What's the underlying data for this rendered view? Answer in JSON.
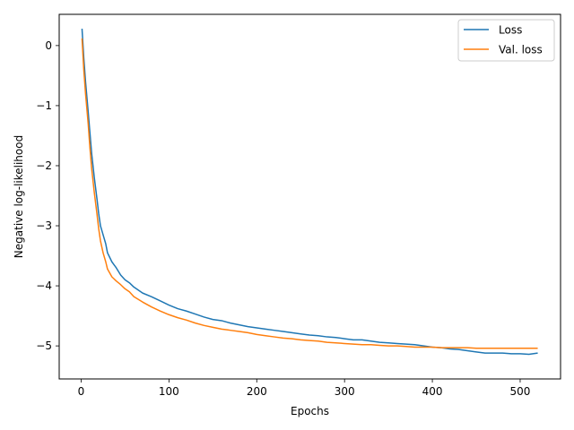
{
  "chart_data": {
    "type": "line",
    "xlabel": "Epochs",
    "ylabel": "Negative log-likelihood",
    "xlim": [
      -25,
      546
    ],
    "ylim": [
      -5.55,
      0.52
    ],
    "xticks": [
      0,
      100,
      200,
      300,
      400,
      500
    ],
    "yticks": [
      0,
      -1,
      -2,
      -3,
      -4,
      -5
    ],
    "xtick_labels": [
      "0",
      "100",
      "200",
      "300",
      "400",
      "500"
    ],
    "ytick_labels": [
      "0",
      "−1",
      "−2",
      "−3",
      "−4",
      "−5"
    ],
    "grid": false,
    "legend_position": "top-right",
    "series": [
      {
        "name": "Loss",
        "color": "#1f77b4",
        "x": [
          1,
          3,
          5,
          8,
          10,
          12,
          15,
          18,
          20,
          22,
          25,
          28,
          30,
          35,
          40,
          45,
          50,
          55,
          60,
          70,
          80,
          90,
          100,
          110,
          120,
          130,
          140,
          150,
          160,
          170,
          180,
          190,
          200,
          210,
          220,
          230,
          240,
          250,
          260,
          270,
          280,
          290,
          300,
          310,
          320,
          330,
          340,
          350,
          360,
          370,
          380,
          390,
          400,
          410,
          420,
          430,
          440,
          450,
          460,
          470,
          480,
          490,
          500,
          510,
          520
        ],
        "y": [
          0.28,
          -0.2,
          -0.6,
          -1.1,
          -1.45,
          -1.8,
          -2.2,
          -2.55,
          -2.8,
          -3.0,
          -3.15,
          -3.3,
          -3.45,
          -3.6,
          -3.7,
          -3.82,
          -3.9,
          -3.95,
          -4.02,
          -4.12,
          -4.18,
          -4.25,
          -4.32,
          -4.38,
          -4.42,
          -4.47,
          -4.52,
          -4.56,
          -4.58,
          -4.62,
          -4.65,
          -4.68,
          -4.7,
          -4.72,
          -4.74,
          -4.76,
          -4.78,
          -4.8,
          -4.82,
          -4.83,
          -4.85,
          -4.86,
          -4.88,
          -4.9,
          -4.9,
          -4.92,
          -4.94,
          -4.95,
          -4.96,
          -4.97,
          -4.98,
          -5.0,
          -5.02,
          -5.03,
          -5.05,
          -5.06,
          -5.08,
          -5.1,
          -5.12,
          -5.12,
          -5.12,
          -5.13,
          -5.13,
          -5.14,
          -5.12
        ]
      },
      {
        "name": "Val. loss",
        "color": "#ff7f0e",
        "x": [
          1,
          3,
          5,
          8,
          10,
          12,
          15,
          18,
          20,
          22,
          25,
          28,
          30,
          35,
          40,
          45,
          50,
          55,
          60,
          70,
          80,
          90,
          100,
          110,
          120,
          130,
          140,
          150,
          160,
          170,
          180,
          190,
          200,
          210,
          220,
          230,
          240,
          250,
          260,
          270,
          280,
          290,
          300,
          310,
          320,
          330,
          340,
          350,
          360,
          370,
          380,
          390,
          400,
          410,
          420,
          430,
          440,
          450,
          460,
          470,
          480,
          490,
          500,
          510,
          520
        ],
        "y": [
          0.12,
          -0.4,
          -0.8,
          -1.3,
          -1.7,
          -2.05,
          -2.45,
          -2.8,
          -3.05,
          -3.25,
          -3.45,
          -3.6,
          -3.72,
          -3.85,
          -3.92,
          -3.98,
          -4.05,
          -4.1,
          -4.18,
          -4.27,
          -4.35,
          -4.42,
          -4.48,
          -4.53,
          -4.57,
          -4.62,
          -4.66,
          -4.69,
          -4.72,
          -4.74,
          -4.76,
          -4.78,
          -4.81,
          -4.83,
          -4.85,
          -4.87,
          -4.88,
          -4.9,
          -4.91,
          -4.92,
          -4.94,
          -4.95,
          -4.96,
          -4.97,
          -4.98,
          -4.98,
          -4.99,
          -5.0,
          -5.0,
          -5.01,
          -5.02,
          -5.02,
          -5.02,
          -5.03,
          -5.03,
          -5.03,
          -5.03,
          -5.04,
          -5.04,
          -5.04,
          -5.04,
          -5.04,
          -5.04,
          -5.04,
          -5.04
        ]
      }
    ]
  },
  "legend": {
    "items": [
      {
        "label": "Loss",
        "color": "#1f77b4"
      },
      {
        "label": "Val. loss",
        "color": "#ff7f0e"
      }
    ]
  }
}
